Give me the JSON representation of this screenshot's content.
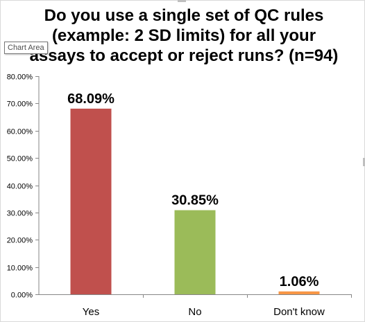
{
  "tooltip": "Chart Area",
  "colors": {
    "axis": "#868686",
    "frame": "#d9d9d9"
  },
  "chart_data": {
    "type": "bar",
    "title": "Do you use a single set of QC rules\n(example: 2 SD limits) for all your\nassays to accept or reject runs? (n=94)",
    "categories": [
      "Yes",
      "No",
      "Don't know"
    ],
    "values": [
      68.09,
      30.85,
      1.06
    ],
    "data_labels": [
      "68.09%",
      "30.85%",
      "1.06%"
    ],
    "bar_colors": [
      "#c0504d",
      "#9bbb59",
      "#f79646"
    ],
    "ylim": [
      0,
      80
    ],
    "yticks": [
      0,
      10,
      20,
      30,
      40,
      50,
      60,
      70,
      80
    ],
    "ytick_labels": [
      "0.00%",
      "10.00%",
      "20.00%",
      "30.00%",
      "40.00%",
      "50.00%",
      "60.00%",
      "70.00%",
      "80.00%"
    ],
    "xlabel": "",
    "ylabel": "",
    "grid": false,
    "legend": "none"
  }
}
